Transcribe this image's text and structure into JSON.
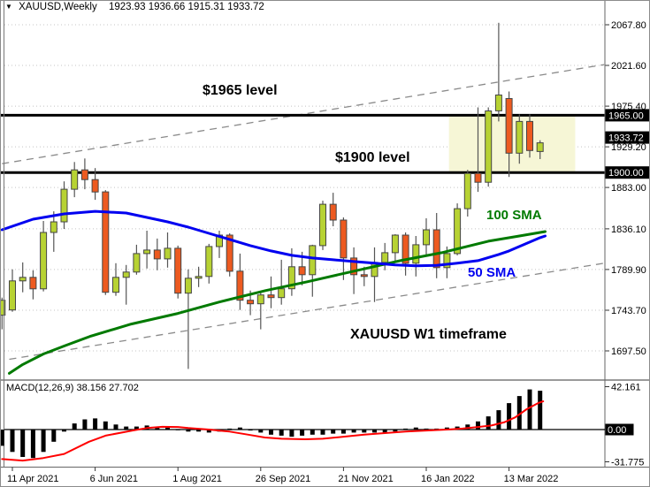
{
  "window": {
    "dropdown_icon": "▼",
    "symbol_period": "XAUUSD,Weekly",
    "ohlc": "1923.93 1936.66 1915.31 1933.72"
  },
  "annotations": {
    "level_1965": "$1965 level",
    "level_1900": "$1900 level",
    "sma_100": "100 SMA",
    "sma_50": "50 SMA",
    "timeframe_note": "XAUUSD W1 timeframe"
  },
  "macd_panel": {
    "label": "MACD(12,26,9) 38.156 27.702"
  },
  "chart_data": {
    "type": "candlestick",
    "symbol": "XAUUSD",
    "timeframe": "W1",
    "price_gridlines": [
      2067.8,
      2021.6,
      1975.4,
      1929.2,
      1883.0,
      1836.1,
      1789.9,
      1743.7,
      1697.5
    ],
    "levels": [
      {
        "price": 1965.0,
        "label": "1965.00"
      },
      {
        "price": 1900.0,
        "label": "1900.00"
      }
    ],
    "current_price": {
      "value": 1933.72,
      "label": "1933.72"
    },
    "date_labels": [
      {
        "week": 0,
        "label": "11 Apr 2021"
      },
      {
        "week": 8,
        "label": "6 Jun 2021"
      },
      {
        "week": 16,
        "label": "1 Aug 2021"
      },
      {
        "week": 24,
        "label": "26 Sep 2021"
      },
      {
        "week": 32,
        "label": "21 Nov 2021"
      },
      {
        "week": 40,
        "label": "16 Jan 2022"
      },
      {
        "week": 48,
        "label": "13 Mar 2022"
      }
    ],
    "start_week": -1,
    "candles": [
      [
        1738,
        1758,
        1722,
        1755
      ],
      [
        1744,
        1790,
        1742,
        1777
      ],
      [
        1777,
        1798,
        1764,
        1781
      ],
      [
        1781,
        1789,
        1756,
        1768
      ],
      [
        1768,
        1845,
        1765,
        1832
      ],
      [
        1832,
        1856,
        1810,
        1844
      ],
      [
        1844,
        1890,
        1836,
        1881
      ],
      [
        1881,
        1912,
        1872,
        1903
      ],
      [
        1903,
        1916,
        1881,
        1892
      ],
      [
        1892,
        1905,
        1869,
        1878
      ],
      [
        1878,
        1880,
        1761,
        1764
      ],
      [
        1764,
        1797,
        1760,
        1781
      ],
      [
        1781,
        1795,
        1750,
        1787
      ],
      [
        1787,
        1818,
        1784,
        1808
      ],
      [
        1808,
        1834,
        1791,
        1812
      ],
      [
        1812,
        1825,
        1789,
        1802
      ],
      [
        1802,
        1832,
        1792,
        1814
      ],
      [
        1814,
        1817,
        1757,
        1763
      ],
      [
        1763,
        1790,
        1677,
        1780
      ],
      [
        1780,
        1793,
        1770,
        1782
      ],
      [
        1782,
        1819,
        1774,
        1816
      ],
      [
        1816,
        1834,
        1803,
        1829
      ],
      [
        1829,
        1831,
        1782,
        1788
      ],
      [
        1788,
        1808,
        1744,
        1755
      ],
      [
        1755,
        1766,
        1738,
        1751
      ],
      [
        1751,
        1765,
        1722,
        1761
      ],
      [
        1761,
        1782,
        1746,
        1758
      ],
      [
        1758,
        1801,
        1750,
        1768
      ],
      [
        1768,
        1814,
        1760,
        1793
      ],
      [
        1793,
        1810,
        1772,
        1784
      ],
      [
        1784,
        1818,
        1759,
        1817
      ],
      [
        1817,
        1868,
        1812,
        1864
      ],
      [
        1864,
        1877,
        1839,
        1846
      ],
      [
        1846,
        1849,
        1778,
        1803
      ],
      [
        1803,
        1815,
        1762,
        1784
      ],
      [
        1784,
        1793,
        1771,
        1782
      ],
      [
        1782,
        1815,
        1753,
        1798
      ],
      [
        1798,
        1820,
        1789,
        1809
      ],
      [
        1809,
        1830,
        1798,
        1829
      ],
      [
        1829,
        1832,
        1783,
        1797
      ],
      [
        1797,
        1828,
        1782,
        1818
      ],
      [
        1818,
        1848,
        1806,
        1835
      ],
      [
        1835,
        1854,
        1780,
        1792
      ],
      [
        1792,
        1816,
        1780,
        1808
      ],
      [
        1808,
        1865,
        1806,
        1859
      ],
      [
        1859,
        1903,
        1850,
        1899
      ],
      [
        1899,
        1974,
        1878,
        1889
      ],
      [
        1889,
        1974,
        1884,
        1970
      ],
      [
        1970,
        2070,
        1958,
        1988
      ],
      [
        1984,
        1992,
        1895,
        1922
      ],
      [
        1922,
        1966,
        1910,
        1958
      ],
      [
        1958,
        1966,
        1917,
        1925
      ],
      [
        1923.93,
        1936.66,
        1915.31,
        1933.72
      ]
    ],
    "sma50": {
      "label": "50 SMA",
      "color": "#0000f0",
      "points": [
        [
          -1,
          1835
        ],
        [
          2,
          1847
        ],
        [
          5,
          1853
        ],
        [
          8,
          1856
        ],
        [
          11,
          1854
        ],
        [
          13,
          1849
        ],
        [
          15,
          1844
        ],
        [
          17,
          1838
        ],
        [
          19,
          1831
        ],
        [
          21,
          1824
        ],
        [
          23,
          1817
        ],
        [
          25,
          1811
        ],
        [
          27,
          1806
        ],
        [
          29,
          1803
        ],
        [
          31,
          1801
        ],
        [
          33,
          1799
        ],
        [
          35,
          1797
        ],
        [
          37,
          1795
        ],
        [
          39,
          1794
        ],
        [
          41,
          1794.5
        ],
        [
          43,
          1797
        ],
        [
          45,
          1800
        ],
        [
          47,
          1807
        ],
        [
          48,
          1811
        ],
        [
          49,
          1816
        ],
        [
          50,
          1821
        ],
        [
          51,
          1826
        ],
        [
          51.5,
          1828
        ]
      ]
    },
    "sma100": {
      "label": "100 SMA",
      "color": "#007a00",
      "points": [
        [
          -0.3,
          1672
        ],
        [
          1,
          1682
        ],
        [
          3,
          1694
        ],
        [
          5,
          1703
        ],
        [
          7.5,
          1714
        ],
        [
          11.5,
          1728
        ],
        [
          16,
          1740
        ],
        [
          20,
          1753
        ],
        [
          24.5,
          1766
        ],
        [
          28.5,
          1776
        ],
        [
          33,
          1788
        ],
        [
          37.5,
          1800
        ],
        [
          41.5,
          1809
        ],
        [
          46,
          1822
        ],
        [
          49,
          1828
        ],
        [
          51,
          1832
        ],
        [
          51.5,
          1833
        ]
      ]
    },
    "trendlines": [
      {
        "name": "upper-channel",
        "points": [
          [
            -1,
            1910
          ],
          [
            57.2,
            2022.5
          ]
        ]
      },
      {
        "name": "lower-channel",
        "points": [
          [
            -0.3,
            1688
          ],
          [
            57.2,
            1797
          ]
        ]
      }
    ],
    "highlight_zone": {
      "week_start": 42.2,
      "week_end": 54.4,
      "price_top": 1965,
      "price_bottom": 1900,
      "color": "#f6f6d6"
    },
    "macd": {
      "params": "12,26,9",
      "main_value": 38.156,
      "signal_value": 27.702,
      "histogram": [
        -16,
        -22,
        -27,
        -28,
        -22,
        -12,
        -2,
        6,
        10,
        11,
        8,
        5,
        3,
        3,
        4,
        3,
        2,
        0,
        -2,
        -2,
        -3,
        -2,
        1,
        2,
        -1,
        -3,
        -5,
        -6,
        -7,
        -6,
        -5,
        -5,
        -4,
        -4,
        -3,
        -3,
        -3,
        -3,
        -2,
        1,
        2,
        1,
        1,
        2,
        3,
        5,
        8,
        13,
        19,
        26,
        33,
        39.5,
        38.156
      ],
      "signal_points": [
        [
          -1,
          -29
        ],
        [
          1,
          -30.5
        ],
        [
          3,
          -28
        ],
        [
          5,
          -24
        ],
        [
          7.4,
          -12
        ],
        [
          9,
          -6
        ],
        [
          11.6,
          -1
        ],
        [
          13,
          1.5
        ],
        [
          14.5,
          2.7
        ],
        [
          16,
          2.5
        ],
        [
          17,
          1.5
        ],
        [
          19,
          0
        ],
        [
          21,
          -2
        ],
        [
          22.8,
          -5
        ],
        [
          24.4,
          -7.8
        ],
        [
          26,
          -9
        ],
        [
          28.3,
          -9.6
        ],
        [
          30,
          -9
        ],
        [
          32,
          -7
        ],
        [
          34,
          -5
        ],
        [
          36,
          -3.5
        ],
        [
          38,
          -2
        ],
        [
          40,
          -1
        ],
        [
          42,
          0
        ],
        [
          43.5,
          1
        ],
        [
          45,
          2.5
        ],
        [
          46.3,
          4
        ],
        [
          47.5,
          7
        ],
        [
          48.6,
          12
        ],
        [
          49.7,
          20
        ],
        [
          50.8,
          26
        ],
        [
          51.3,
          27.702
        ]
      ],
      "scale_max": {
        "value": 42.161,
        "label": "42.161"
      },
      "scale_min": {
        "value": -31.775,
        "label": "-31.775"
      },
      "zero_label": "0.00"
    },
    "colors": {
      "bull": "#b7d233",
      "bear": "#ed5a20",
      "candle_border": "#454545",
      "wick": "#555555",
      "grid": "#c4c4c4",
      "level_line": "#000000",
      "trendline": "#8a8a8a",
      "zone": "#f6f6d6",
      "sma50": "#0000f0",
      "sma100": "#007a00",
      "macd_bar": "#000000",
      "macd_signal": "#ff0000",
      "axis_box_bg": "#000000",
      "axis_box_text": "#ffffff"
    }
  }
}
